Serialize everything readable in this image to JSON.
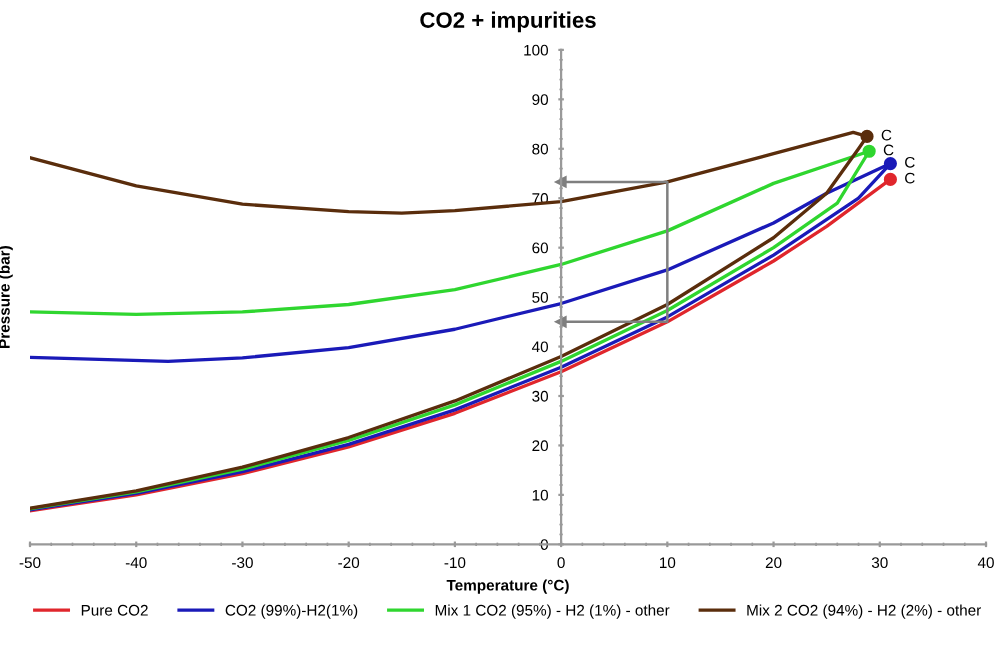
{
  "chart_data": {
    "type": "line",
    "title": "CO2 + impurities",
    "xlabel": "Temperature (°C)",
    "ylabel": "Pressure (bar)",
    "xlim": [
      -50,
      40
    ],
    "xticks": [
      -50,
      -40,
      -30,
      -20,
      -10,
      0,
      10,
      20,
      30,
      40
    ],
    "ylim": [
      0,
      100
    ],
    "yticks": [
      0,
      10,
      20,
      30,
      40,
      50,
      60,
      70,
      80,
      90,
      100
    ],
    "grid": false,
    "legend": "bottom",
    "series": [
      {
        "name": "Pure CO2",
        "color": "#e0262c",
        "x": [
          -50,
          -40,
          -30,
          -20,
          -10,
          0,
          10,
          20,
          25,
          31
        ],
        "values": [
          6.8,
          10.0,
          14.3,
          19.7,
          26.5,
          34.9,
          45.0,
          57.3,
          64.3,
          73.8
        ]
      },
      {
        "name": "CO2 (99%)-H2(1%)",
        "color": "#1a1ab8",
        "x": [
          -50,
          -40,
          -30,
          -20,
          -10,
          0,
          10,
          20,
          28,
          31,
          25,
          20,
          10,
          0,
          -10,
          -20,
          -30,
          -37,
          -50
        ],
        "values": [
          7.0,
          10.3,
          14.7,
          20.2,
          27.2,
          35.8,
          46.0,
          58.5,
          70.0,
          77.0,
          71.0,
          65.0,
          55.5,
          48.7,
          43.5,
          39.8,
          37.7,
          37.0,
          37.8
        ]
      },
      {
        "name": "Mix 1 CO2 (95%) - H2 (1%) - other",
        "color": "#2fd62f",
        "x": [
          -50,
          -40,
          -30,
          -20,
          -10,
          0,
          10,
          20,
          26,
          29,
          20,
          10,
          0,
          -10,
          -20,
          -30,
          -40,
          -50
        ],
        "values": [
          7.2,
          10.6,
          15.2,
          21.0,
          28.2,
          37.0,
          47.3,
          60.0,
          69.0,
          79.5,
          73.0,
          63.4,
          56.6,
          51.5,
          48.5,
          47.0,
          46.5,
          47.0
        ]
      },
      {
        "name": "Mix 2 CO2 (94%) - H2 (2%) - other",
        "color": "#5a2d0c",
        "x": [
          -50,
          -40,
          -30,
          -20,
          -10,
          0,
          10,
          20,
          25,
          28,
          28.8,
          27.5,
          20,
          10,
          0,
          -10,
          -15,
          -20,
          -30,
          -40,
          -50
        ],
        "values": [
          7.3,
          10.8,
          15.6,
          21.6,
          29.0,
          38.0,
          48.5,
          62.0,
          71.0,
          80.0,
          82.5,
          83.3,
          79.0,
          73.3,
          69.3,
          67.5,
          67.0,
          67.3,
          68.8,
          72.5,
          78.2
        ]
      },
      {
        "type": "scatter",
        "marker": "circle",
        "colors": [
          "#e0262c",
          "#1a1ab8",
          "#2fd62f",
          "#5a2d0c"
        ],
        "x": [
          31,
          31,
          29,
          28.8
        ],
        "values": [
          73.8,
          77.0,
          79.5,
          82.5
        ]
      },
      {
        "color": "#7f7f7f",
        "marker": "triangle",
        "x": [
          0,
          10,
          10,
          0
        ],
        "values": [
          73.3,
          73.3,
          45.0,
          45.0
        ]
      }
    ],
    "annotations": [
      {
        "text": "C",
        "x": 31,
        "y": 73.8
      },
      {
        "text": "C",
        "x": 31,
        "y": 77.0
      },
      {
        "text": "C",
        "x": 29,
        "y": 79.5
      },
      {
        "text": "C",
        "x": 28.8,
        "y": 82.5
      }
    ]
  }
}
